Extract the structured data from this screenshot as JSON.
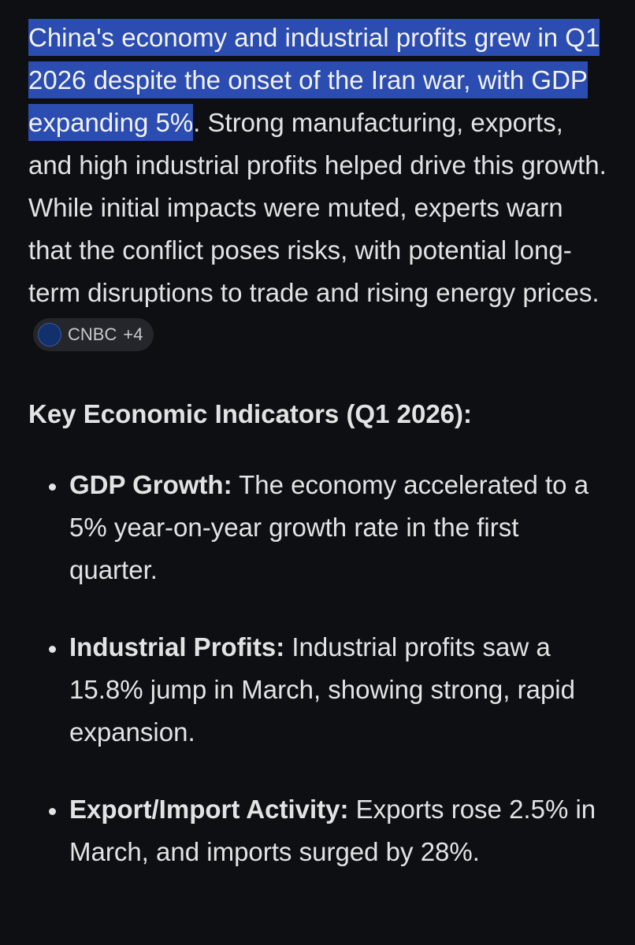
{
  "summary": {
    "highlight": "China's economy and industrial profits grew in Q1 2026 despite the onset of the Iran war, with GDP expanding 5%",
    "text": ". Strong manufacturing, exports, and high industrial profits helped drive this growth. While initial impacts were muted, experts warn that the conflict poses risks, with potential long-term disruptions to trade and rising energy prices.",
    "source": {
      "label": "CNBC",
      "more": "+4"
    }
  },
  "heading": "Key Economic Indicators (Q1 2026):",
  "items": [
    {
      "label": "GDP Growth:",
      "text": "The economy accelerated to a 5% year-on-year growth rate in the first quarter."
    },
    {
      "label": "Industrial Profits:",
      "text": "Industrial profits saw a 15.8% jump in March, showing strong, rapid expansion."
    },
    {
      "label": "Export/Import Activity:",
      "text": "Exports rose 2.5% in March, and imports surged by 28%."
    }
  ]
}
